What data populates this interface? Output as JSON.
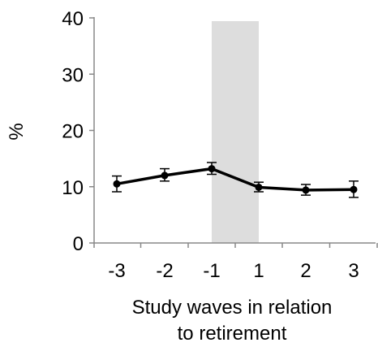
{
  "chart_data": {
    "type": "line",
    "ylabel": "%",
    "xlabel_lines": [
      "Study waves in relation",
      "to retirement"
    ],
    "categories": [
      "-3",
      "-2",
      "-1",
      "1",
      "2",
      "3"
    ],
    "ylim": [
      0,
      40
    ],
    "yticks": [
      "0",
      "10",
      "20",
      "30",
      "40"
    ],
    "series": [
      {
        "values": [
          10.5,
          12.0,
          13.2,
          9.9,
          9.4,
          9.5
        ],
        "error_low": [
          9.1,
          11.0,
          12.2,
          9.1,
          8.5,
          8.1
        ],
        "error_high": [
          11.9,
          13.2,
          14.3,
          10.8,
          10.4,
          11.0
        ],
        "color": "#000000",
        "marker": "circle"
      }
    ],
    "shaded_region": {
      "from_category": "-1",
      "to_category": "1",
      "color": "#dddddd"
    },
    "grid": false,
    "legend": "none"
  }
}
